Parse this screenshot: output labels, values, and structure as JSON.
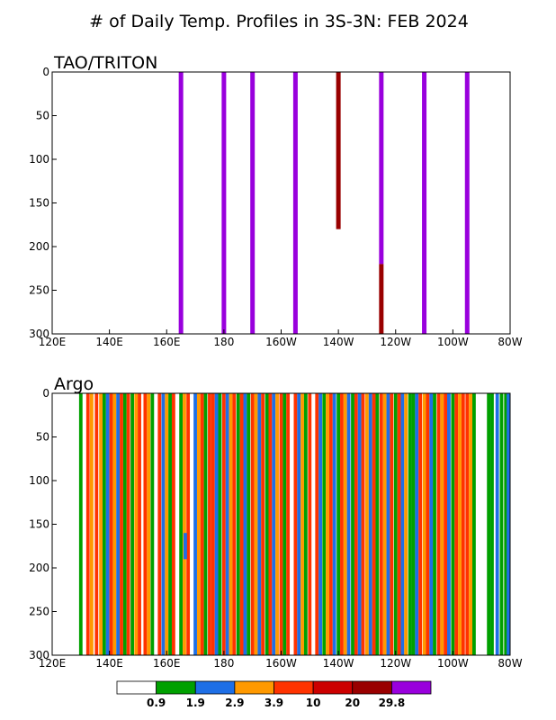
{
  "chart_data": [
    {
      "type": "heatmap",
      "title": "# of Daily Temp. Profiles in 3S-3N: FEB 2024",
      "panel_title": "TAO/TRITON",
      "x_ticks": [
        "120E",
        "140E",
        "160E",
        "180",
        "160W",
        "140W",
        "120W",
        "100W",
        "80W"
      ],
      "y_ticks": [
        "0",
        "50",
        "100",
        "150",
        "200",
        "250",
        "300"
      ],
      "xlim": [
        120,
        280
      ],
      "ylim": [
        0,
        300
      ],
      "y_inverted": true,
      "segments": [
        {
          "lon": 165,
          "top": 0,
          "bottom": 300,
          "color": "#9900dd"
        },
        {
          "lon": 180,
          "top": 0,
          "bottom": 300,
          "color": "#9900dd"
        },
        {
          "lon": 190,
          "top": 0,
          "bottom": 300,
          "color": "#9900dd"
        },
        {
          "lon": 205,
          "top": 0,
          "bottom": 300,
          "color": "#9900dd"
        },
        {
          "lon": 220,
          "top": 0,
          "bottom": 180,
          "color": "#990000"
        },
        {
          "lon": 235,
          "top": 0,
          "bottom": 220,
          "color": "#9900dd"
        },
        {
          "lon": 235,
          "top": 220,
          "bottom": 300,
          "color": "#990000"
        },
        {
          "lon": 250,
          "top": 0,
          "bottom": 300,
          "color": "#9900dd"
        },
        {
          "lon": 265,
          "top": 0,
          "bottom": 300,
          "color": "#9900dd"
        }
      ]
    },
    {
      "type": "heatmap",
      "panel_title": "Argo",
      "x_ticks": [
        "120E",
        "140E",
        "160E",
        "180",
        "160W",
        "140W",
        "120W",
        "100W",
        "80W"
      ],
      "y_ticks": [
        "0",
        "50",
        "100",
        "150",
        "200",
        "250",
        "300"
      ],
      "xlim": [
        120,
        280
      ],
      "ylim": [
        0,
        300
      ],
      "y_inverted": true,
      "stripe_width_deg": 1.2,
      "stripes": [
        {
          "lon": 130.0,
          "color": "#00a000"
        },
        {
          "lon": 132.5,
          "color": "#ff3300"
        },
        {
          "lon": 133.8,
          "color": "#ff9900"
        },
        {
          "lon": 135.5,
          "color": "#ff3300"
        },
        {
          "lon": 137.0,
          "color": "#ff9900"
        },
        {
          "lon": 138.2,
          "color": "#00a000"
        },
        {
          "lon": 139.4,
          "color": "#1e6fe6"
        },
        {
          "lon": 140.6,
          "color": "#ff3300"
        },
        {
          "lon": 141.8,
          "color": "#ff9900"
        },
        {
          "lon": 143.0,
          "color": "#1e6fe6"
        },
        {
          "lon": 144.2,
          "color": "#ff3300"
        },
        {
          "lon": 145.4,
          "color": "#00a000"
        },
        {
          "lon": 146.6,
          "color": "#ff3300"
        },
        {
          "lon": 148.0,
          "color": "#00a000"
        },
        {
          "lon": 149.3,
          "color": "#ff9900"
        },
        {
          "lon": 150.5,
          "color": "#ff3300"
        },
        {
          "lon": 152.5,
          "color": "#ff3300"
        },
        {
          "lon": 153.7,
          "color": "#ff9900"
        },
        {
          "lon": 155.0,
          "color": "#00a000"
        },
        {
          "lon": 157.5,
          "color": "#ff3300"
        },
        {
          "lon": 158.8,
          "color": "#1e6fe6"
        },
        {
          "lon": 160.0,
          "color": "#ff9900"
        },
        {
          "lon": 161.2,
          "color": "#00a000"
        },
        {
          "lon": 162.4,
          "color": "#ff3300"
        },
        {
          "lon": 165.0,
          "color": "#00a000"
        },
        {
          "lon": 166.2,
          "color": "#ff9900"
        },
        {
          "lon": 167.5,
          "color": "#ff3300"
        },
        {
          "lon": 170.0,
          "color": "#1e6fe6"
        },
        {
          "lon": 171.2,
          "color": "#ff9900"
        },
        {
          "lon": 172.4,
          "color": "#ff3300"
        },
        {
          "lon": 173.6,
          "color": "#00a000"
        },
        {
          "lon": 175.0,
          "color": "#ff3300"
        },
        {
          "lon": 176.2,
          "color": "#ff3300"
        },
        {
          "lon": 177.4,
          "color": "#1e6fe6"
        },
        {
          "lon": 178.6,
          "color": "#00a000"
        },
        {
          "lon": 180.0,
          "color": "#ff3300"
        },
        {
          "lon": 181.2,
          "color": "#1e6fe6"
        },
        {
          "lon": 182.4,
          "color": "#ff9900"
        },
        {
          "lon": 183.6,
          "color": "#ff3300"
        },
        {
          "lon": 185.0,
          "color": "#00a000"
        },
        {
          "lon": 186.2,
          "color": "#ff3300"
        },
        {
          "lon": 187.4,
          "color": "#1e6fe6"
        },
        {
          "lon": 188.6,
          "color": "#00a000"
        },
        {
          "lon": 190.0,
          "color": "#ff3300"
        },
        {
          "lon": 191.2,
          "color": "#ff9900"
        },
        {
          "lon": 192.4,
          "color": "#1e6fe6"
        },
        {
          "lon": 193.6,
          "color": "#ff3300"
        },
        {
          "lon": 195.0,
          "color": "#00a000"
        },
        {
          "lon": 196.2,
          "color": "#ff3300"
        },
        {
          "lon": 197.4,
          "color": "#1e6fe6"
        },
        {
          "lon": 198.6,
          "color": "#ff9900"
        },
        {
          "lon": 200.0,
          "color": "#ff3300"
        },
        {
          "lon": 201.2,
          "color": "#00a000"
        },
        {
          "lon": 202.4,
          "color": "#ff3300"
        },
        {
          "lon": 205.0,
          "color": "#ff3300"
        },
        {
          "lon": 206.2,
          "color": "#1e6fe6"
        },
        {
          "lon": 207.4,
          "color": "#ff9900"
        },
        {
          "lon": 208.6,
          "color": "#00a000"
        },
        {
          "lon": 210.0,
          "color": "#ff3300"
        },
        {
          "lon": 212.5,
          "color": "#ff3300"
        },
        {
          "lon": 213.7,
          "color": "#1e6fe6"
        },
        {
          "lon": 215.0,
          "color": "#00a000"
        },
        {
          "lon": 216.2,
          "color": "#ff9900"
        },
        {
          "lon": 217.4,
          "color": "#ff3300"
        },
        {
          "lon": 218.6,
          "color": "#1e6fe6"
        },
        {
          "lon": 220.0,
          "color": "#00a000"
        },
        {
          "lon": 221.2,
          "color": "#ff3300"
        },
        {
          "lon": 222.4,
          "color": "#ff9900"
        },
        {
          "lon": 223.6,
          "color": "#1e6fe6"
        },
        {
          "lon": 225.0,
          "color": "#00a000"
        },
        {
          "lon": 226.2,
          "color": "#ff3300"
        },
        {
          "lon": 227.4,
          "color": "#1e6fe6"
        },
        {
          "lon": 228.6,
          "color": "#ff3300"
        },
        {
          "lon": 230.0,
          "color": "#ff9900"
        },
        {
          "lon": 231.2,
          "color": "#1e6fe6"
        },
        {
          "lon": 232.4,
          "color": "#ff3300"
        },
        {
          "lon": 233.6,
          "color": "#00a000"
        },
        {
          "lon": 235.0,
          "color": "#ff3300"
        },
        {
          "lon": 236.2,
          "color": "#ff9900"
        },
        {
          "lon": 237.4,
          "color": "#1e6fe6"
        },
        {
          "lon": 238.6,
          "color": "#ff3300"
        },
        {
          "lon": 240.0,
          "color": "#00a000"
        },
        {
          "lon": 241.2,
          "color": "#ff3300"
        },
        {
          "lon": 242.4,
          "color": "#1e6fe6"
        },
        {
          "lon": 243.6,
          "color": "#ff9900"
        },
        {
          "lon": 245.0,
          "color": "#00a000"
        },
        {
          "lon": 246.2,
          "color": "#00a000"
        },
        {
          "lon": 247.4,
          "color": "#1e6fe6"
        },
        {
          "lon": 248.6,
          "color": "#ff3300"
        },
        {
          "lon": 250.0,
          "color": "#ff9900"
        },
        {
          "lon": 251.2,
          "color": "#ff3300"
        },
        {
          "lon": 252.4,
          "color": "#1e6fe6"
        },
        {
          "lon": 253.6,
          "color": "#00a000"
        },
        {
          "lon": 255.0,
          "color": "#ff3300"
        },
        {
          "lon": 256.2,
          "color": "#ff9900"
        },
        {
          "lon": 257.4,
          "color": "#ff3300"
        },
        {
          "lon": 258.6,
          "color": "#1e6fe6"
        },
        {
          "lon": 260.0,
          "color": "#00a000"
        },
        {
          "lon": 261.2,
          "color": "#ff3300"
        },
        {
          "lon": 262.4,
          "color": "#ff9900"
        },
        {
          "lon": 263.6,
          "color": "#ff3300"
        },
        {
          "lon": 265.0,
          "color": "#ff3300"
        },
        {
          "lon": 266.2,
          "color": "#ff9900"
        },
        {
          "lon": 267.4,
          "color": "#00a000"
        },
        {
          "lon": 272.5,
          "color": "#00a000"
        },
        {
          "lon": 273.7,
          "color": "#00a000"
        },
        {
          "lon": 275.5,
          "color": "#1e6fe6"
        },
        {
          "lon": 277.0,
          "color": "#00a000"
        },
        {
          "lon": 278.5,
          "color": "#00a000"
        },
        {
          "lon": 279.4,
          "color": "#1e6fe6"
        }
      ],
      "patches": [
        {
          "lon": 166.5,
          "top": 160,
          "bottom": 190,
          "color": "#1e6fe6"
        }
      ]
    }
  ],
  "colorbar": {
    "labels": [
      "0.9",
      "1.9",
      "2.9",
      "3.9",
      "10",
      "20",
      "29.8"
    ],
    "colors": [
      "#ffffff",
      "#00a000",
      "#1e6fe6",
      "#ff9900",
      "#ff3300",
      "#cc0000",
      "#990000",
      "#9900dd"
    ]
  }
}
